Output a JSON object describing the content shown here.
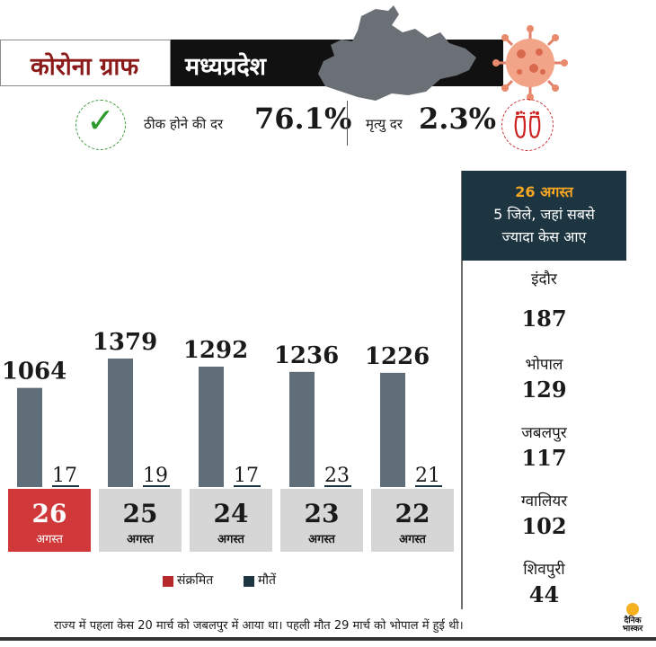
{
  "header": {
    "title": "कोरोना ग्राफ",
    "state": "मध्यप्रदेश"
  },
  "stats": {
    "recovery_label": "ठीक होने की दर",
    "recovery_value": "76.1%",
    "death_label": "मृत्यु दर",
    "death_value": "2.3%"
  },
  "colors": {
    "infected": "#5f6e78",
    "deaths": "#1d3541",
    "highlight": "#d0383a",
    "date_box": "#d6d6d6",
    "sidebar": "#1d3541",
    "accent": "#f5a623"
  },
  "chart_data": {
    "type": "bar",
    "categories": [
      "26 अगस्त",
      "25 अगस्त",
      "24 अगस्त",
      "23 अगस्त",
      "22 अगस्त"
    ],
    "dates": [
      {
        "day": "26",
        "month": "अगस्त"
      },
      {
        "day": "25",
        "month": "अगस्त"
      },
      {
        "day": "24",
        "month": "अगस्त"
      },
      {
        "day": "23",
        "month": "अगस्त"
      },
      {
        "day": "22",
        "month": "अगस्त"
      }
    ],
    "series": [
      {
        "name": "संक्रमित",
        "values": [
          1064,
          1379,
          1292,
          1236,
          1226
        ]
      },
      {
        "name": "मौतें",
        "values": [
          17,
          19,
          17,
          23,
          21
        ]
      }
    ],
    "legend": [
      "संक्रमित",
      "मौतें"
    ],
    "legend_position": "bottom-center"
  },
  "sidebar": {
    "date": "26 अगस्त",
    "subtitle_line1": "5 जिले, जहां सबसे",
    "subtitle_line2": "ज्यादा केस आए",
    "districts": [
      {
        "name": "इंदौर",
        "value": "187"
      },
      {
        "name": "भोपाल",
        "value": "129"
      },
      {
        "name": "जबलपुर",
        "value": "117"
      },
      {
        "name": "ग्वालियर",
        "value": "102"
      },
      {
        "name": "शिवपुरी",
        "value": "44"
      }
    ]
  },
  "footer": {
    "note": "राज्य में पहला केस 20 मार्च को जबलपुर में आया था। पहली मौत 29 मार्च को भोपाल में हुई थी।",
    "logo_line1": "दैनिक",
    "logo_line2": "भास्कर"
  }
}
